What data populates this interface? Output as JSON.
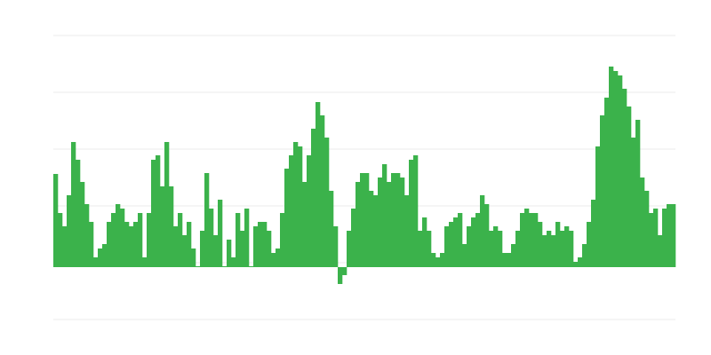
{
  "chart_data": {
    "type": "bar",
    "title": "",
    "xlabel": "",
    "ylabel": "",
    "ylim": [
      -59,
      261
    ],
    "gridlines": [
      261,
      197,
      133,
      69,
      5,
      -59
    ],
    "grid": true,
    "bar_color": "#3bb24b",
    "grid_color": "#ebebeb",
    "values": [
      105,
      61,
      46,
      81,
      141,
      121,
      96,
      71,
      51,
      11,
      21,
      26,
      51,
      61,
      71,
      66,
      51,
      46,
      51,
      61,
      11,
      61,
      121,
      126,
      91,
      141,
      91,
      46,
      61,
      36,
      51,
      21,
      1,
      41,
      106,
      66,
      36,
      76,
      1,
      31,
      11,
      61,
      41,
      66,
      1,
      46,
      51,
      51,
      41,
      16,
      21,
      61,
      111,
      126,
      141,
      136,
      96,
      126,
      156,
      186,
      171,
      146,
      86,
      46,
      -19,
      -9,
      41,
      66,
      96,
      106,
      106,
      86,
      81,
      101,
      116,
      96,
      106,
      106,
      101,
      81,
      121,
      126,
      41,
      56,
      41,
      16,
      11,
      16,
      46,
      51,
      56,
      61,
      26,
      46,
      56,
      61,
      81,
      71,
      41,
      46,
      41,
      16,
      16,
      26,
      41,
      61,
      66,
      61,
      61,
      51,
      36,
      41,
      36,
      51,
      41,
      46,
      41,
      6,
      11,
      26,
      51,
      76,
      136,
      171,
      191,
      226,
      221,
      216,
      201,
      181,
      146,
      166,
      101,
      86,
      61,
      66,
      36,
      66,
      71,
      71
    ]
  }
}
